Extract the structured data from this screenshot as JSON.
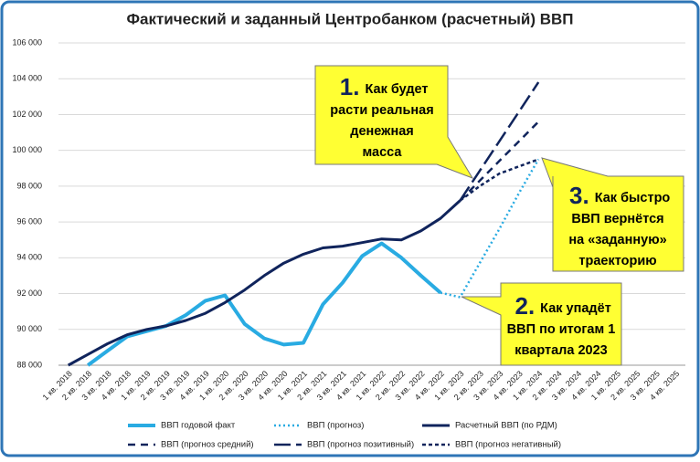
{
  "chart_data": {
    "type": "line",
    "title": "Фактический и заданный Центробанком (расчетный) ВВП",
    "categories": [
      "1 кв. 2018",
      "2 кв. 2018",
      "3 кв. 2018",
      "4 кв. 2018",
      "1 кв. 2019",
      "2 кв. 2019",
      "3 кв. 2019",
      "4 кв. 2019",
      "1 кв. 2020",
      "2 кв. 2020",
      "3 кв. 2020",
      "4 кв. 2020",
      "1 кв. 2021",
      "2 кв. 2021",
      "3 кв. 2021",
      "4 кв. 2021",
      "1 кв. 2022",
      "2 кв. 2022",
      "3 кв. 2022",
      "4 кв. 2022",
      "1 кв. 2023",
      "2 кв. 2023",
      "3 кв. 2023",
      "4 кв. 2023",
      "1 кв. 2024",
      "2 кв. 2024",
      "3 кв. 2024",
      "4 кв. 2024",
      "1 кв. 2025",
      "2 кв. 2025",
      "3 кв. 2025",
      "4 кв. 2025"
    ],
    "ylim": [
      88000,
      106000
    ],
    "yticks": [
      {
        "value": 88000,
        "label": "88 000"
      },
      {
        "value": 90000,
        "label": "90 000"
      },
      {
        "value": 92000,
        "label": "92 000"
      },
      {
        "value": 94000,
        "label": "94 000"
      },
      {
        "value": 96000,
        "label": "96 000"
      },
      {
        "value": 98000,
        "label": "98 000"
      },
      {
        "value": 100000,
        "label": "100 000"
      },
      {
        "value": 102000,
        "label": "102 000"
      },
      {
        "value": 104000,
        "label": "104 000"
      },
      {
        "value": 106000,
        "label": "106 000"
      }
    ],
    "grid": true,
    "legend": "bottom",
    "series": [
      {
        "name": "ВВП годовой факт",
        "color": "#29abe2",
        "dash": "solid",
        "values": [
          null,
          88000,
          88800,
          89600,
          89900,
          90200,
          90800,
          91600,
          91900,
          90300,
          89500,
          89150,
          89250,
          91400,
          92600,
          94100,
          94800,
          94000,
          93000,
          92050,
          null,
          null,
          null,
          null,
          null,
          null,
          null,
          null,
          null,
          null,
          null,
          null
        ]
      },
      {
        "name": "ВВП (прогноз)",
        "color": "#29abe2",
        "dash": "dotted",
        "values": [
          null,
          null,
          null,
          null,
          null,
          null,
          null,
          null,
          null,
          null,
          null,
          null,
          null,
          null,
          null,
          null,
          null,
          null,
          null,
          92050,
          91800,
          93700,
          95600,
          97600,
          99500,
          null,
          null,
          null,
          null,
          null,
          null,
          null
        ]
      },
      {
        "name": "Расчетный ВВП (по РДМ)",
        "color": "#10245c",
        "dash": "solid",
        "values": [
          88000,
          88600,
          89200,
          89700,
          90000,
          90200,
          90500,
          90900,
          91500,
          92200,
          93000,
          93700,
          94200,
          94550,
          94650,
          94850,
          95050,
          95000,
          95500,
          96200,
          97200,
          null,
          null,
          null,
          null,
          null,
          null,
          null,
          null,
          null,
          null,
          null
        ]
      },
      {
        "name": "ВВП (прогноз средний)",
        "color": "#10245c",
        "dash": "medium",
        "values": [
          null,
          null,
          null,
          null,
          null,
          null,
          null,
          null,
          null,
          null,
          null,
          null,
          null,
          null,
          null,
          null,
          null,
          null,
          null,
          null,
          97200,
          98300,
          99400,
          100500,
          101600,
          null,
          null,
          null,
          null,
          null,
          null,
          null
        ]
      },
      {
        "name": "ВВП (прогноз позитивный)",
        "color": "#10245c",
        "dash": "long",
        "values": [
          null,
          null,
          null,
          null,
          null,
          null,
          null,
          null,
          null,
          null,
          null,
          null,
          null,
          null,
          null,
          null,
          null,
          null,
          null,
          null,
          97200,
          98850,
          100500,
          102150,
          103800,
          null,
          null,
          null,
          null,
          null,
          null,
          null
        ]
      },
      {
        "name": "ВВП (прогноз негативный)",
        "color": "#10245c",
        "dash": "short",
        "values": [
          null,
          null,
          null,
          null,
          null,
          null,
          null,
          null,
          null,
          null,
          null,
          null,
          null,
          null,
          null,
          null,
          null,
          null,
          null,
          null,
          97200,
          98000,
          98700,
          99100,
          99500,
          null,
          null,
          null,
          null,
          null,
          null,
          null
        ]
      }
    ],
    "annotations": [
      {
        "number": "1.",
        "lines": [
          "Как будет",
          "расти реальная",
          "денежная",
          "масса"
        ]
      },
      {
        "number": "3.",
        "lines": [
          "Как быстро",
          "ВВП вернётся",
          "на «заданную»",
          "траекторию"
        ]
      },
      {
        "number": "2.",
        "lines": [
          "Как упадёт",
          "ВВП по итогам 1",
          "квартала 2023"
        ]
      }
    ]
  }
}
